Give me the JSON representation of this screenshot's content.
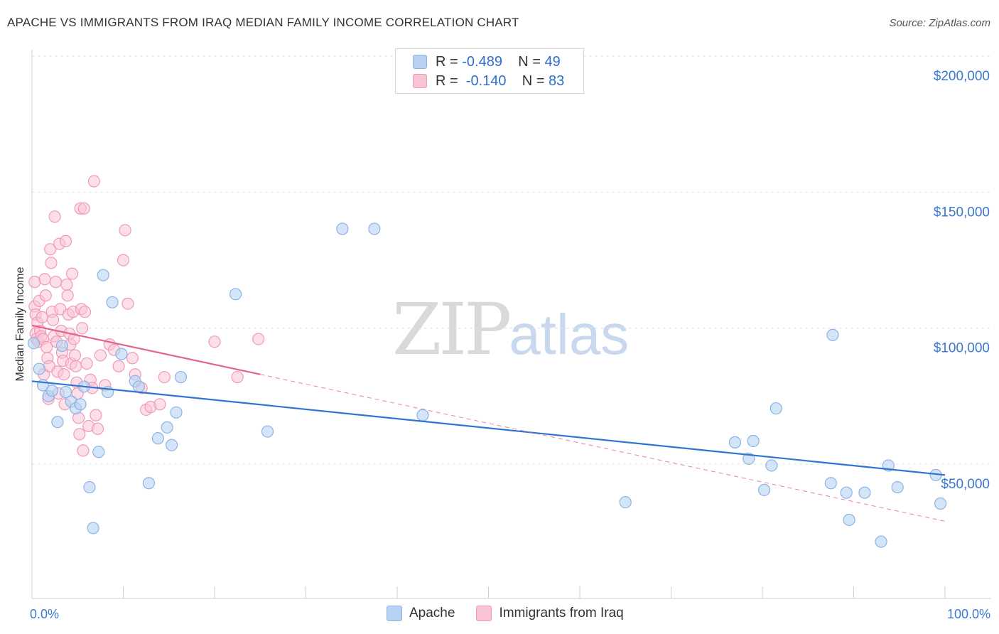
{
  "header": {
    "title": "APACHE VS IMMIGRANTS FROM IRAQ MEDIAN FAMILY INCOME CORRELATION CHART",
    "source": "Source: ZipAtlas.com"
  },
  "watermark": {
    "zip": "ZIP",
    "atlas": "atlas"
  },
  "legend": {
    "rows": [
      {
        "r_label": "R =",
        "r_value": "-0.489",
        "n_label": "N =",
        "n_value": "49"
      },
      {
        "r_label": "R =",
        "r_value": "-0.140",
        "n_label": "N =",
        "n_value": "83"
      }
    ]
  },
  "bottom_legend": {
    "series1": "Apache",
    "series2": "Immigrants from Iraq"
  },
  "colors": {
    "blue_fill": "#b8d3f2",
    "blue_stroke": "#8bb3e6",
    "blue_line": "#2f74d0",
    "pink_fill": "#f9c4d5",
    "pink_stroke": "#f09ab5",
    "pink_line": "#e3638c",
    "grid": "#e0e0e0",
    "axis_text": "#3b78d0"
  },
  "chart_data": {
    "type": "scatter",
    "title": "APACHE VS IMMIGRANTS FROM IRAQ MEDIAN FAMILY INCOME CORRELATION CHART",
    "xlabel": "",
    "ylabel": "Median Family Income",
    "xlim": [
      0,
      100
    ],
    "ylim": [
      0,
      210000
    ],
    "x_tick_labels": [
      "0.0%",
      "100.0%"
    ],
    "y_ticks": [
      50000,
      100000,
      150000,
      200000
    ],
    "y_tick_labels": [
      "$50,000",
      "$100,000",
      "$150,000",
      "$200,000"
    ],
    "series": [
      {
        "name": "Apache",
        "r": -0.489,
        "n": 49,
        "trend": {
          "x0": 0,
          "y0": 80500,
          "x1": 100,
          "y1": 46000
        },
        "points": [
          [
            0.2,
            94500
          ],
          [
            0.8,
            85000
          ],
          [
            1.2,
            79000
          ],
          [
            1.8,
            75000
          ],
          [
            2.2,
            77000
          ],
          [
            2.8,
            65500
          ],
          [
            3.3,
            93500
          ],
          [
            3.7,
            76500
          ],
          [
            4.3,
            73000
          ],
          [
            4.8,
            70500
          ],
          [
            5.3,
            72000
          ],
          [
            5.7,
            78500
          ],
          [
            6.3,
            41500
          ],
          [
            6.7,
            26500
          ],
          [
            7.3,
            54500
          ],
          [
            7.8,
            119500
          ],
          [
            8.3,
            76500
          ],
          [
            8.8,
            109500
          ],
          [
            9.8,
            90500
          ],
          [
            11.3,
            80500
          ],
          [
            11.7,
            78500
          ],
          [
            12.8,
            43000
          ],
          [
            13.8,
            59500
          ],
          [
            14.8,
            63500
          ],
          [
            15.3,
            57000
          ],
          [
            15.8,
            69000
          ],
          [
            16.3,
            82000
          ],
          [
            22.3,
            112500
          ],
          [
            25.8,
            62000
          ],
          [
            34.0,
            136500
          ],
          [
            37.5,
            136500
          ],
          [
            42.8,
            68000
          ],
          [
            65.0,
            36000
          ],
          [
            77.0,
            58000
          ],
          [
            78.5,
            52000
          ],
          [
            79.0,
            58500
          ],
          [
            80.2,
            40500
          ],
          [
            81.0,
            49500
          ],
          [
            81.5,
            70500
          ],
          [
            87.5,
            43000
          ],
          [
            87.7,
            97500
          ],
          [
            89.2,
            39500
          ],
          [
            89.5,
            29500
          ],
          [
            91.2,
            39500
          ],
          [
            93.0,
            21500
          ],
          [
            93.8,
            49500
          ],
          [
            94.8,
            41500
          ],
          [
            99.0,
            46000
          ],
          [
            99.5,
            35500
          ]
        ]
      },
      {
        "name": "Immigrants from Iraq",
        "r": -0.14,
        "n": 83,
        "trend": {
          "x0": 0,
          "y0": 101000,
          "x1": 25,
          "y1": 83000
        },
        "trend_ext": {
          "x0": 25,
          "y0": 83000,
          "x1": 100,
          "y1": 29000
        },
        "points": [
          [
            0.3,
            117000
          ],
          [
            0.3,
            108000
          ],
          [
            0.4,
            105000
          ],
          [
            0.4,
            98000
          ],
          [
            0.5,
            96000
          ],
          [
            0.6,
            102000
          ],
          [
            0.7,
            95000
          ],
          [
            0.8,
            110000
          ],
          [
            0.9,
            99000
          ],
          [
            1.0,
            97000
          ],
          [
            1.1,
            104000
          ],
          [
            1.2,
            96000
          ],
          [
            1.3,
            83000
          ],
          [
            1.4,
            118000
          ],
          [
            1.5,
            112000
          ],
          [
            1.6,
            93000
          ],
          [
            1.7,
            89000
          ],
          [
            1.8,
            74000
          ],
          [
            1.9,
            86000
          ],
          [
            2.0,
            129000
          ],
          [
            2.1,
            124000
          ],
          [
            2.2,
            106000
          ],
          [
            2.3,
            103000
          ],
          [
            2.4,
            97000
          ],
          [
            2.5,
            141000
          ],
          [
            2.6,
            117000
          ],
          [
            2.7,
            95000
          ],
          [
            2.8,
            84000
          ],
          [
            2.9,
            76000
          ],
          [
            3.0,
            131000
          ],
          [
            3.1,
            107000
          ],
          [
            3.2,
            99000
          ],
          [
            3.3,
            91000
          ],
          [
            3.4,
            88000
          ],
          [
            3.5,
            83000
          ],
          [
            3.6,
            72000
          ],
          [
            3.7,
            132000
          ],
          [
            3.8,
            116000
          ],
          [
            3.9,
            112000
          ],
          [
            4.0,
            105000
          ],
          [
            4.1,
            98000
          ],
          [
            4.2,
            94000
          ],
          [
            4.3,
            87000
          ],
          [
            4.4,
            120000
          ],
          [
            4.5,
            106000
          ],
          [
            4.6,
            96000
          ],
          [
            4.7,
            90000
          ],
          [
            4.8,
            86000
          ],
          [
            4.9,
            80000
          ],
          [
            5.0,
            76000
          ],
          [
            5.1,
            67000
          ],
          [
            5.2,
            61000
          ],
          [
            5.3,
            144000
          ],
          [
            5.4,
            107000
          ],
          [
            5.5,
            100000
          ],
          [
            5.6,
            55000
          ],
          [
            5.7,
            144000
          ],
          [
            5.8,
            106000
          ],
          [
            6.0,
            87000
          ],
          [
            6.2,
            64000
          ],
          [
            6.4,
            81000
          ],
          [
            6.6,
            78000
          ],
          [
            6.8,
            154000
          ],
          [
            7.0,
            68000
          ],
          [
            7.2,
            63000
          ],
          [
            7.5,
            90000
          ],
          [
            8.0,
            79000
          ],
          [
            8.5,
            94000
          ],
          [
            9.0,
            92000
          ],
          [
            9.5,
            86000
          ],
          [
            10.0,
            125000
          ],
          [
            10.2,
            136000
          ],
          [
            10.5,
            109000
          ],
          [
            11.0,
            89000
          ],
          [
            11.3,
            83000
          ],
          [
            12.0,
            78000
          ],
          [
            12.5,
            70000
          ],
          [
            13.0,
            71000
          ],
          [
            14.0,
            72000
          ],
          [
            14.5,
            82000
          ],
          [
            20.0,
            95000
          ],
          [
            22.5,
            82000
          ],
          [
            24.8,
            96000
          ]
        ]
      }
    ]
  }
}
